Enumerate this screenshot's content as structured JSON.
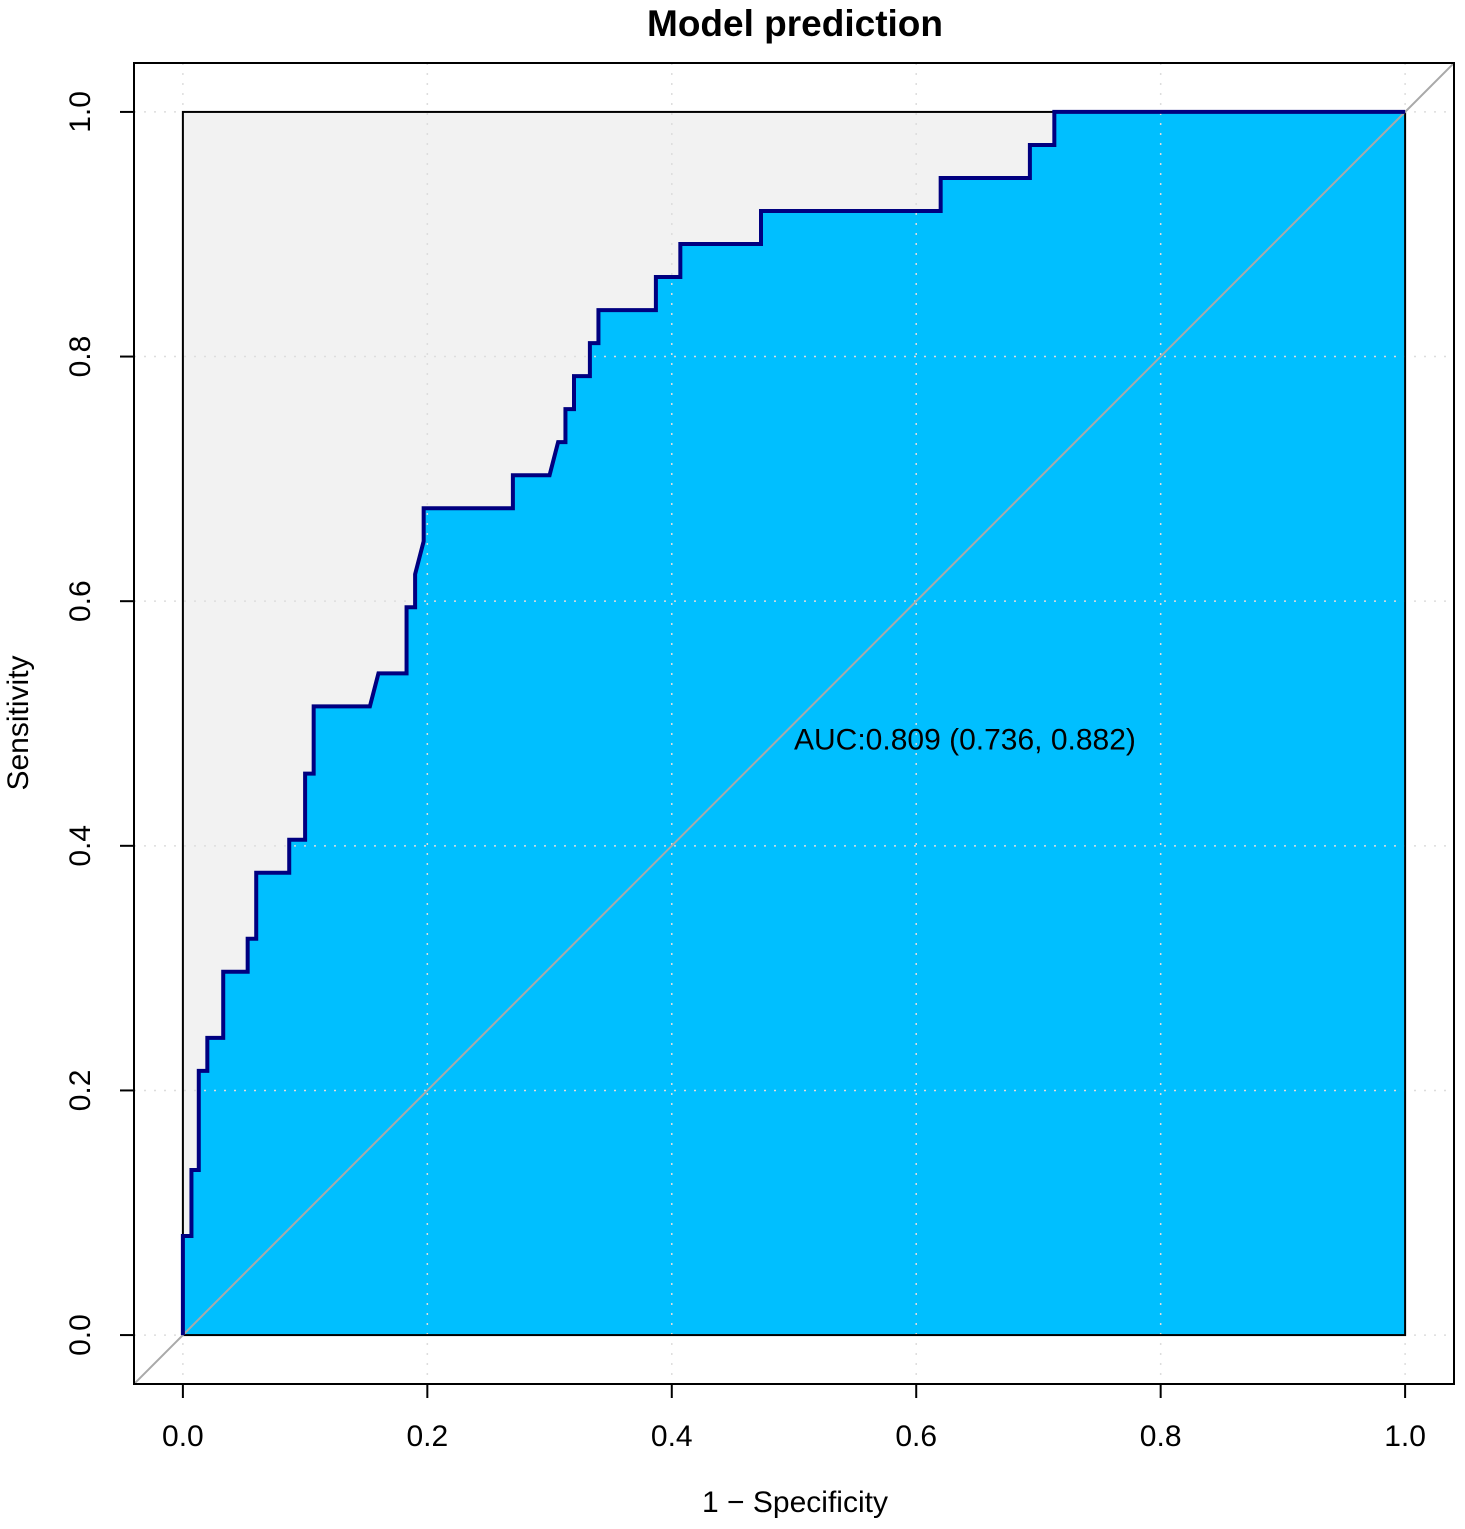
{
  "chart_data": {
    "type": "line",
    "title": "Model prediction",
    "xlabel": "1 − Specificity",
    "ylabel": "Sensitivity",
    "xlim": [
      -0.04,
      1.04
    ],
    "ylim": [
      -0.04,
      1.04
    ],
    "x_ticks": [
      "0.0",
      "0.2",
      "0.4",
      "0.6",
      "0.8",
      "1.0"
    ],
    "y_ticks": [
      "0.0",
      "0.2",
      "0.4",
      "0.6",
      "0.8",
      "1.0"
    ],
    "grid": true,
    "annotation": {
      "text": "AUC:0.809 (0.736, 0.882)",
      "x": 0.5,
      "y": 0.487
    },
    "colors": {
      "roc_line": "#000080",
      "auc_fill": "#00BFFF",
      "unit_square": "#F2F2F2",
      "diagonal": "#A9A9A9",
      "grid": "#DDDDDD"
    },
    "series": [
      {
        "x": [
          0.0,
          0.0,
          0.007,
          0.007,
          0.013,
          0.013,
          0.02,
          0.02,
          0.033,
          0.033,
          0.053,
          0.053,
          0.06,
          0.06,
          0.087,
          0.087,
          0.1,
          0.1,
          0.107,
          0.107,
          0.153,
          0.16,
          0.183,
          0.183,
          0.19,
          0.19,
          0.197,
          0.197,
          0.27,
          0.27,
          0.3,
          0.307,
          0.313,
          0.313,
          0.32,
          0.32,
          0.333,
          0.333,
          0.34,
          0.34,
          0.387,
          0.387,
          0.407,
          0.407,
          0.473,
          0.473,
          0.62,
          0.62,
          0.693,
          0.693,
          0.713,
          0.713,
          1.0
        ],
        "y": [
          0.0,
          0.081,
          0.081,
          0.135,
          0.135,
          0.216,
          0.216,
          0.243,
          0.243,
          0.297,
          0.297,
          0.324,
          0.324,
          0.378,
          0.378,
          0.405,
          0.405,
          0.459,
          0.459,
          0.514,
          0.514,
          0.541,
          0.541,
          0.595,
          0.595,
          0.622,
          0.649,
          0.676,
          0.676,
          0.703,
          0.703,
          0.73,
          0.73,
          0.757,
          0.757,
          0.784,
          0.784,
          0.811,
          0.811,
          0.838,
          0.838,
          0.865,
          0.865,
          0.892,
          0.892,
          0.919,
          0.919,
          0.946,
          0.946,
          0.973,
          0.973,
          1.0,
          1.0
        ]
      }
    ]
  }
}
